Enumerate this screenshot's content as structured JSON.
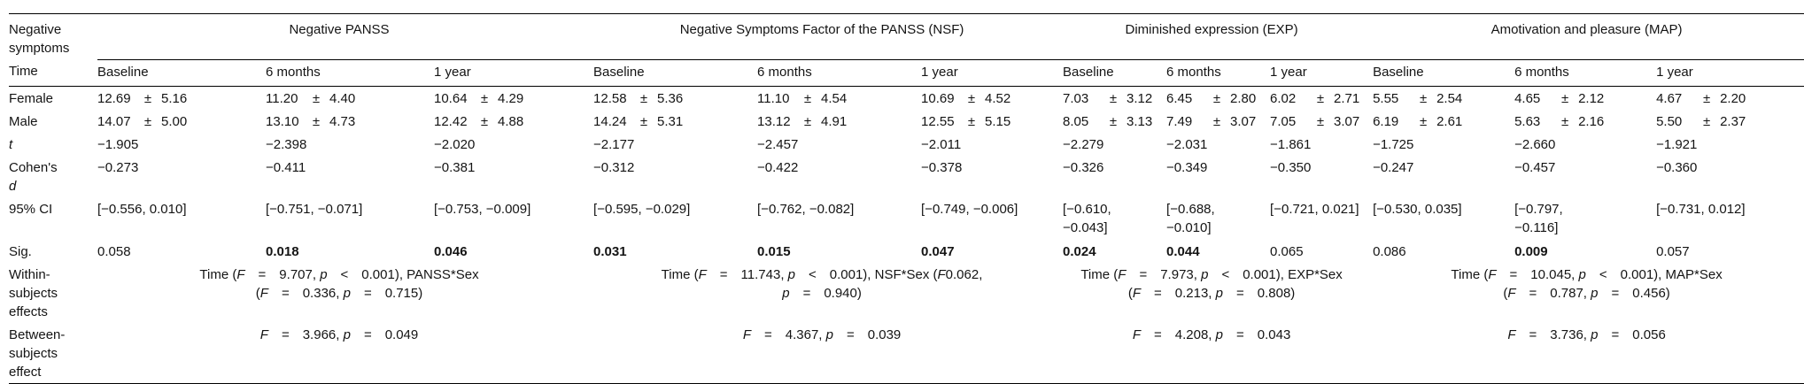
{
  "table": {
    "corner_label": "Negative\nsymptoms",
    "time_label": "Time",
    "plus_minus": "±",
    "groups": [
      "Negative PANSS",
      "Negative Symptoms Factor of the PANSS (NSF)",
      "Diminished expression (EXP)",
      "Amotivation and pleasure (MAP)"
    ],
    "time_columns": [
      "Baseline",
      "6 months",
      "1 year"
    ],
    "rows": [
      {
        "key": "female",
        "label": "Female",
        "type": "pm",
        "cells": [
          {
            "mean": "12.69",
            "sd": "5.16"
          },
          {
            "mean": "11.20",
            "sd": "4.40"
          },
          {
            "mean": "10.64",
            "sd": "4.29"
          },
          {
            "mean": "12.58",
            "sd": "5.36"
          },
          {
            "mean": "11.10",
            "sd": "4.54"
          },
          {
            "mean": "10.69",
            "sd": "4.52"
          },
          {
            "mean": "7.03",
            "sd": "3.12"
          },
          {
            "mean": "6.45",
            "sd": "2.80"
          },
          {
            "mean": "6.02",
            "sd": "2.71"
          },
          {
            "mean": "5.55",
            "sd": "2.54"
          },
          {
            "mean": "4.65",
            "sd": "2.12"
          },
          {
            "mean": "4.67",
            "sd": "2.20"
          }
        ]
      },
      {
        "key": "male",
        "label": "Male",
        "type": "pm",
        "cells": [
          {
            "mean": "14.07",
            "sd": "5.00"
          },
          {
            "mean": "13.10",
            "sd": "4.73"
          },
          {
            "mean": "12.42",
            "sd": "4.88"
          },
          {
            "mean": "14.24",
            "sd": "5.31"
          },
          {
            "mean": "13.12",
            "sd": "4.91"
          },
          {
            "mean": "12.55",
            "sd": "5.15"
          },
          {
            "mean": "8.05",
            "sd": "3.13"
          },
          {
            "mean": "7.49",
            "sd": "3.07"
          },
          {
            "mean": "7.05",
            "sd": "3.07"
          },
          {
            "mean": "6.19",
            "sd": "2.61"
          },
          {
            "mean": "5.63",
            "sd": "2.16"
          },
          {
            "mean": "5.50",
            "sd": "2.37"
          }
        ]
      },
      {
        "key": "t",
        "label": "t",
        "type": "text",
        "cells": [
          {
            "text": "−1.905"
          },
          {
            "text": "−2.398"
          },
          {
            "text": "−2.020"
          },
          {
            "text": "−2.177"
          },
          {
            "text": "−2.457"
          },
          {
            "text": "−2.011"
          },
          {
            "text": "−2.279"
          },
          {
            "text": "−2.031"
          },
          {
            "text": "−1.861"
          },
          {
            "text": "−1.725"
          },
          {
            "text": "−2.660"
          },
          {
            "text": "−1.921"
          }
        ]
      },
      {
        "key": "cohens_d",
        "label": "Cohen's\nd",
        "type": "text",
        "cells": [
          {
            "text": "−0.273"
          },
          {
            "text": "−0.411"
          },
          {
            "text": "−0.381"
          },
          {
            "text": "−0.312"
          },
          {
            "text": "−0.422"
          },
          {
            "text": "−0.378"
          },
          {
            "text": "−0.326"
          },
          {
            "text": "−0.349"
          },
          {
            "text": "−0.350"
          },
          {
            "text": "−0.247"
          },
          {
            "text": "−0.457"
          },
          {
            "text": "−0.360"
          }
        ]
      },
      {
        "key": "ci",
        "label": "95% CI",
        "type": "text",
        "cells": [
          {
            "text": "[−0.556, 0.010]",
            "wrap": false
          },
          {
            "text": "[−0.751, −0.071]",
            "wrap": false
          },
          {
            "text": "[−0.753, −0.009]",
            "wrap": false
          },
          {
            "text": "[−0.595, −0.029]",
            "wrap": false
          },
          {
            "text": "[−0.762, −0.082]",
            "wrap": false
          },
          {
            "text": "[−0.749, −0.006]",
            "wrap": false
          },
          {
            "text": "[−0.610, −0.043]",
            "wrap": true
          },
          {
            "text": "[−0.688, −0.010]",
            "wrap": true
          },
          {
            "text": "[−0.721, 0.021]",
            "wrap": false
          },
          {
            "text": "[−0.530, 0.035]",
            "wrap": false
          },
          {
            "text": "[−0.797, −0.116]",
            "wrap": true
          },
          {
            "text": "[−0.731, 0.012]",
            "wrap": false
          }
        ]
      },
      {
        "key": "sig",
        "label": "Sig.",
        "type": "text",
        "cells": [
          {
            "text": "0.058",
            "bold": false
          },
          {
            "text": "0.018",
            "bold": true
          },
          {
            "text": "0.046",
            "bold": true
          },
          {
            "text": "0.031",
            "bold": true
          },
          {
            "text": "0.015",
            "bold": true
          },
          {
            "text": "0.047",
            "bold": true
          },
          {
            "text": "0.024",
            "bold": true
          },
          {
            "text": "0.044",
            "bold": true
          },
          {
            "text": "0.065",
            "bold": false
          },
          {
            "text": "0.086",
            "bold": false
          },
          {
            "text": "0.009",
            "bold": true
          },
          {
            "text": "0.057",
            "bold": false
          }
        ]
      },
      {
        "key": "within",
        "label": "Within-\nsubjects\neffects",
        "type": "span",
        "cells": [
          {
            "line1": "Time (F = 9.707, p < 0.001), PANSS*Sex",
            "line2": "(F = 0.336, p = 0.715)"
          },
          {
            "line1": "Time (F = 11.743, p < 0.001), NSF*Sex (F0.062,",
            "line2": "p = 0.940)"
          },
          {
            "line1": "Time (F = 7.973, p < 0.001), EXP*Sex",
            "line2": "(F = 0.213, p = 0.808)"
          },
          {
            "line1": "Time (F = 10.045, p < 0.001), MAP*Sex",
            "line2": "(F = 0.787, p = 0.456)"
          }
        ]
      },
      {
        "key": "between",
        "label": "Between-\nsubjects\neffect",
        "type": "span",
        "cells": [
          {
            "line1": "F = 3.966, p = 0.049"
          },
          {
            "line1": "F = 4.367, p = 0.039"
          },
          {
            "line1": "F = 4.208, p = 0.043"
          },
          {
            "line1": "F = 3.736, p = 0.056"
          }
        ]
      }
    ]
  }
}
